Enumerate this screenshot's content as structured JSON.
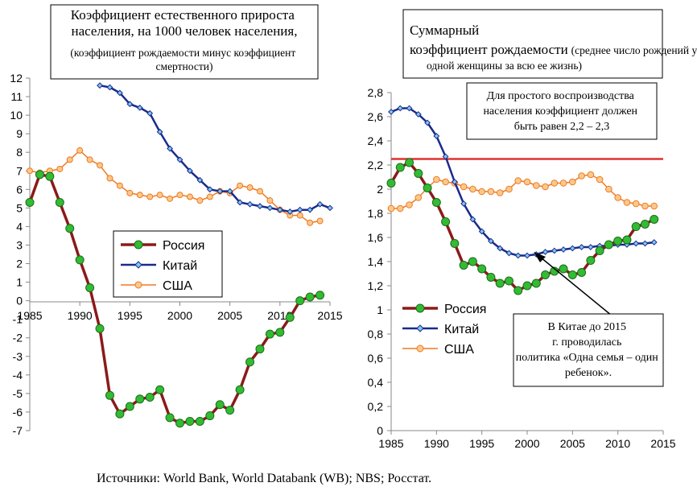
{
  "chart_data": [
    {
      "type": "line",
      "title": "Коэффициент естественного прироста населения, на 1000 человек населения,",
      "subtitle": "(коэффициент рождаемости минус коэффициент смертности)",
      "xlim": [
        1985,
        2015
      ],
      "ylim": [
        -7,
        12
      ],
      "x_ticks": [
        "1985",
        "1990",
        "1995",
        "2000",
        "2005",
        "2010",
        "2015"
      ],
      "y_ticks": [
        "12",
        "11",
        "10",
        "9",
        "8",
        "7",
        "6",
        "5",
        "4",
        "3",
        "2",
        "1",
        "0",
        "-1",
        "-2",
        "-3",
        "-4",
        "-5",
        "-6",
        "-7"
      ],
      "grid": false,
      "legend_position": "center-left",
      "series": [
        {
          "name": "Россия",
          "color": "#8b1a1a",
          "marker_color": "#33bb33",
          "x": [
            1985,
            1986,
            1987,
            1988,
            1989,
            1990,
            1991,
            1992,
            1993,
            1994,
            1995,
            1996,
            1997,
            1998,
            1999,
            2000,
            2001,
            2002,
            2003,
            2004,
            2005,
            2006,
            2007,
            2008,
            2009,
            2010,
            2011,
            2012,
            2013,
            2014
          ],
          "y": [
            5.3,
            6.8,
            6.7,
            5.3,
            3.9,
            2.2,
            0.7,
            -1.5,
            -5.1,
            -6.1,
            -5.7,
            -5.3,
            -5.2,
            -4.8,
            -6.3,
            -6.6,
            -6.5,
            -6.5,
            -6.2,
            -5.6,
            -5.9,
            -4.8,
            -3.3,
            -2.6,
            -1.8,
            -1.7,
            -0.9,
            0.0,
            0.2,
            0.3
          ]
        },
        {
          "name": "Китай",
          "color": "#1a2a8c",
          "marker_color": "#7fc8f0",
          "x": [
            1992,
            1993,
            1994,
            1995,
            1996,
            1997,
            1998,
            1999,
            2000,
            2001,
            2002,
            2003,
            2004,
            2005,
            2006,
            2007,
            2008,
            2009,
            2010,
            2011,
            2012,
            2013,
            2014,
            2015
          ],
          "y": [
            11.6,
            11.5,
            11.2,
            10.6,
            10.4,
            10.1,
            9.1,
            8.2,
            7.6,
            7.0,
            6.5,
            6.0,
            5.9,
            5.9,
            5.3,
            5.2,
            5.1,
            5.0,
            4.9,
            4.8,
            4.9,
            4.9,
            5.2,
            5.0
          ]
        },
        {
          "name": "США",
          "color": "#f07820",
          "marker_color": "#f9c98c",
          "x": [
            1985,
            1986,
            1987,
            1988,
            1989,
            1990,
            1991,
            1992,
            1993,
            1994,
            1995,
            1996,
            1997,
            1998,
            1999,
            2000,
            2001,
            2002,
            2003,
            2004,
            2005,
            2006,
            2007,
            2008,
            2009,
            2010,
            2011,
            2012,
            2013,
            2014
          ],
          "y": [
            7.0,
            6.9,
            7.0,
            7.1,
            7.6,
            8.1,
            7.6,
            7.3,
            6.6,
            6.2,
            5.8,
            5.7,
            5.6,
            5.7,
            5.5,
            5.7,
            5.6,
            5.4,
            5.6,
            5.9,
            5.8,
            6.2,
            6.1,
            5.9,
            5.4,
            4.9,
            4.6,
            4.6,
            4.2,
            4.3
          ]
        }
      ]
    },
    {
      "type": "line",
      "title": "Суммарный коэффициент рождаемости",
      "subtitle": "(среднее число рождений у одной женщины за всю ее жизнь)",
      "xlim": [
        1985,
        2015
      ],
      "ylim": [
        0,
        2.8
      ],
      "x_ticks": [
        "1985",
        "1990",
        "1995",
        "2000",
        "2005",
        "2010",
        "2015"
      ],
      "y_ticks": [
        "2,8",
        "2,6",
        "2,4",
        "2,2",
        "2",
        "1,8",
        "1,6",
        "1,4",
        "1,2",
        "1",
        "0,8",
        "0,6",
        "0,4",
        "0,2",
        "0"
      ],
      "grid": false,
      "legend_position": "bottom-left",
      "reference_line": {
        "y": 2.25,
        "color": "#e03030"
      },
      "annotations": [
        "Для простого воспроизводства населения коэффициент должен быть равен  2,2 – 2,3",
        "В Китае до 2015 г. проводилась политика «Одна семья – один ребенок»."
      ],
      "series": [
        {
          "name": "Россия",
          "color": "#8b1a1a",
          "marker_color": "#33bb33",
          "x": [
            1985,
            1986,
            1987,
            1988,
            1989,
            1990,
            1991,
            1992,
            1993,
            1994,
            1995,
            1996,
            1997,
            1998,
            1999,
            2000,
            2001,
            2002,
            2003,
            2004,
            2005,
            2006,
            2007,
            2008,
            2009,
            2010,
            2011,
            2012,
            2013,
            2014
          ],
          "y": [
            2.05,
            2.18,
            2.22,
            2.13,
            2.01,
            1.89,
            1.73,
            1.55,
            1.37,
            1.4,
            1.34,
            1.27,
            1.22,
            1.24,
            1.16,
            1.2,
            1.22,
            1.29,
            1.32,
            1.34,
            1.29,
            1.31,
            1.41,
            1.49,
            1.54,
            1.57,
            1.58,
            1.69,
            1.71,
            1.75
          ]
        },
        {
          "name": "Китай",
          "color": "#1a2a8c",
          "marker_color": "#7fc8f0",
          "x": [
            1985,
            1986,
            1987,
            1988,
            1989,
            1990,
            1991,
            1992,
            1993,
            1994,
            1995,
            1996,
            1997,
            1998,
            1999,
            2000,
            2001,
            2002,
            2003,
            2004,
            2005,
            2006,
            2007,
            2008,
            2009,
            2010,
            2011,
            2012,
            2013,
            2014
          ],
          "y": [
            2.64,
            2.67,
            2.67,
            2.62,
            2.55,
            2.44,
            2.27,
            2.06,
            1.88,
            1.75,
            1.65,
            1.57,
            1.51,
            1.47,
            1.45,
            1.45,
            1.46,
            1.48,
            1.49,
            1.5,
            1.51,
            1.52,
            1.52,
            1.53,
            1.53,
            1.54,
            1.54,
            1.55,
            1.55,
            1.56
          ]
        },
        {
          "name": "США",
          "color": "#f07820",
          "marker_color": "#f9c98c",
          "x": [
            1985,
            1986,
            1987,
            1988,
            1989,
            1990,
            1991,
            1992,
            1993,
            1994,
            1995,
            1996,
            1997,
            1998,
            1999,
            2000,
            2001,
            2002,
            2003,
            2004,
            2005,
            2006,
            2007,
            2008,
            2009,
            2010,
            2011,
            2012,
            2013,
            2014
          ],
          "y": [
            1.84,
            1.84,
            1.87,
            1.93,
            2.01,
            2.08,
            2.06,
            2.05,
            2.02,
            2.0,
            1.98,
            1.98,
            1.97,
            2.0,
            2.07,
            2.06,
            2.03,
            2.02,
            2.05,
            2.05,
            2.06,
            2.11,
            2.12,
            2.08,
            2.0,
            1.93,
            1.89,
            1.88,
            1.86,
            1.86
          ]
        }
      ]
    }
  ],
  "footer": {
    "source": "Источники: World Bank, World Databank (WB); NBS; Росстат."
  }
}
